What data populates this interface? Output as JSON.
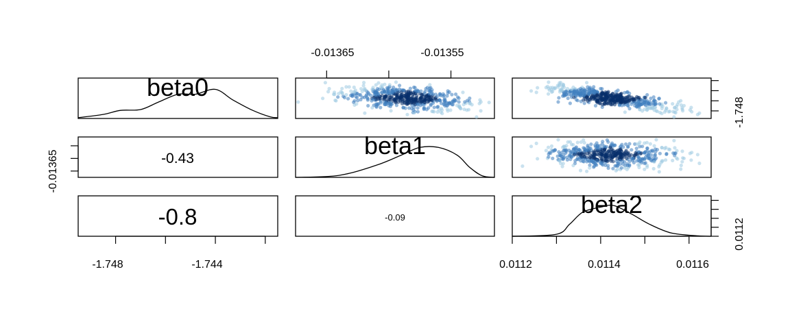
{
  "chart_data": {
    "type": "pairs",
    "variables": [
      "beta0",
      "beta1",
      "beta2"
    ],
    "correlations": [
      {
        "row": 1,
        "col": 0,
        "value": "-0.43"
      },
      {
        "row": 2,
        "col": 0,
        "value": "-0.8"
      },
      {
        "row": 2,
        "col": 1,
        "value": "-0.09"
      }
    ],
    "axes": {
      "beta0": {
        "range": [
          -1.7495,
          -1.7415
        ],
        "ticks": [
          -1.748,
          -1.746,
          -1.744,
          -1.742
        ],
        "tick_labels": [
          "-1.748",
          "-1.744"
        ]
      },
      "beta1": {
        "range": [
          -0.013675,
          -0.013515
        ],
        "ticks": [
          -0.01365,
          -0.0136,
          -0.01355
        ],
        "tick_labels": [
          "-0.01365",
          "-0.01355"
        ]
      },
      "beta2": {
        "range": [
          0.0112,
          0.01165
        ],
        "ticks": [
          0.0112,
          0.0113,
          0.0114,
          0.0115,
          0.0116
        ],
        "tick_labels": [
          "0.0112",
          "0.0114",
          "0.0116"
        ]
      }
    },
    "y_axis_labels": {
      "row0": "-1.748",
      "row1": "-0.01365",
      "row2": "0.0112"
    },
    "densities": {
      "beta0": [
        [
          -1.7495,
          0.02
        ],
        [
          -1.7485,
          0.1
        ],
        [
          -1.7478,
          0.2
        ],
        [
          -1.747,
          0.22
        ],
        [
          -1.7463,
          0.4
        ],
        [
          -1.7455,
          0.6
        ],
        [
          -1.7448,
          0.6
        ],
        [
          -1.744,
          0.72
        ],
        [
          -1.7433,
          0.46
        ],
        [
          -1.7425,
          0.2
        ],
        [
          -1.7418,
          0.04
        ],
        [
          -1.7415,
          0.02
        ]
      ],
      "beta1": [
        [
          -0.013675,
          0.0
        ],
        [
          -0.01364,
          0.05
        ],
        [
          -0.01361,
          0.3
        ],
        [
          -0.01359,
          0.55
        ],
        [
          -0.013575,
          0.74
        ],
        [
          -0.01356,
          0.74
        ],
        [
          -0.013545,
          0.55
        ],
        [
          -0.013535,
          0.25
        ],
        [
          -0.013525,
          0.04
        ],
        [
          -0.013515,
          0.0
        ]
      ],
      "beta2": [
        [
          0.0112,
          0.0
        ],
        [
          0.0113,
          0.05
        ],
        [
          0.01133,
          0.3
        ],
        [
          0.01136,
          0.6
        ],
        [
          0.0114,
          0.72
        ],
        [
          0.01143,
          0.76
        ],
        [
          0.01147,
          0.55
        ],
        [
          0.01151,
          0.3
        ],
        [
          0.01156,
          0.08
        ],
        [
          0.01162,
          0.01
        ],
        [
          0.01165,
          0.0
        ]
      ]
    },
    "scatter_point_color": "#3f7fbf",
    "scatter_dense_color": "#08306b",
    "scatter_light_color": "#9ecae1"
  }
}
